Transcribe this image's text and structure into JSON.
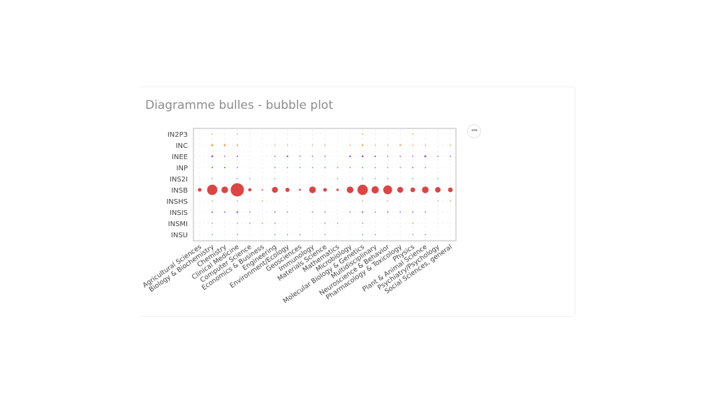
{
  "card": {
    "title": "Diagramme bulles - bubble plot",
    "menu_icon": "more-horizontal-icon"
  },
  "chart_data": {
    "type": "scatter",
    "title": "Diagramme bulles - bubble plot",
    "xlabel": "",
    "ylabel": "",
    "grid": true,
    "legend": "none",
    "x_categories": [
      "Agricultural Sciences",
      "Biology & Biochemistry",
      "Chemistry",
      "Clinical Medicine",
      "Computer Science",
      "Economics & Business",
      "Engineering",
      "Environment/Ecology",
      "Geosciences",
      "Immunology",
      "Materials Science",
      "Mathematics",
      "Microbiology",
      "Molecular Biology & Genetics",
      "Multidisciplinary",
      "Neuroscience & Behavior",
      "Pharmacology & Toxicology",
      "Physics",
      "Plant & Animal Science",
      "Psychiatry/Psychology",
      "Social Sciences, general"
    ],
    "y_categories": [
      "IN2P3",
      "INC",
      "INEE",
      "INP",
      "INS2I",
      "INSB",
      "INSHS",
      "INSIS",
      "INSMI",
      "INSU"
    ],
    "series": [
      {
        "institute": "IN2P3",
        "color": "#f0a050",
        "values": [
          0,
          0.04,
          0,
          0.03,
          0,
          0,
          0,
          0,
          0,
          0,
          0,
          0,
          0,
          0.03,
          0,
          0,
          0,
          0.02,
          0,
          0,
          0
        ]
      },
      {
        "institute": "INC",
        "color": "#f5912e",
        "values": [
          0,
          0.5,
          0.5,
          0.3,
          0,
          0,
          0.15,
          0.1,
          0,
          0.1,
          0.2,
          0,
          0.1,
          0.35,
          0.1,
          0.05,
          0.35,
          0.15,
          0.1,
          0,
          0.05
        ]
      },
      {
        "institute": "INEE",
        "color": "#7b3fe8",
        "values": [
          0,
          0.45,
          0.1,
          0.25,
          0,
          0,
          0.1,
          0.35,
          0.15,
          0.1,
          0.05,
          0,
          0.35,
          0.4,
          0.3,
          0.1,
          0.1,
          0.1,
          0.5,
          0.05,
          0.1
        ]
      },
      {
        "institute": "INP",
        "color": "#3fa84a",
        "values": [
          0,
          0.3,
          0.3,
          0.2,
          0,
          0,
          0.2,
          0.05,
          0.05,
          0.05,
          0.2,
          0.05,
          0.05,
          0.2,
          0.15,
          0.05,
          0.1,
          0.25,
          0.05,
          0,
          0
        ]
      },
      {
        "institute": "INS2I",
        "color": "#40b0a8",
        "values": [
          0,
          0.05,
          0,
          0.05,
          0.15,
          0,
          0.05,
          0,
          0,
          0,
          0,
          0.05,
          0,
          0.1,
          0.05,
          0.15,
          0,
          0.05,
          0,
          0.05,
          0
        ]
      },
      {
        "institute": "INSB",
        "color": "#dd4444",
        "values": [
          1.5,
          12,
          5,
          20,
          1.2,
          0.3,
          4,
          2,
          0.5,
          5,
          1.5,
          0.8,
          5,
          12,
          6,
          9,
          4,
          2.5,
          5,
          3.5,
          2.5
        ]
      },
      {
        "institute": "INSHS",
        "color": "#b8a070",
        "values": [
          0,
          0.02,
          0,
          0.02,
          0,
          0.05,
          0,
          0,
          0,
          0,
          0,
          0,
          0,
          0.02,
          0,
          0.02,
          0,
          0,
          0,
          0.05,
          0.05
        ]
      },
      {
        "institute": "INSIS",
        "color": "#6a5ae0",
        "values": [
          0,
          0.3,
          0.25,
          0.4,
          0.05,
          0,
          0.25,
          0.05,
          0,
          0.05,
          0.15,
          0,
          0.05,
          0.3,
          0.05,
          0.25,
          0.05,
          0.2,
          0.05,
          0,
          0
        ]
      },
      {
        "institute": "INSMI",
        "color": "#cf7a5a",
        "values": [
          0,
          0.02,
          0,
          0.02,
          0.05,
          0.02,
          0.02,
          0,
          0,
          0,
          0.02,
          0.05,
          0,
          0.02,
          0,
          0,
          0,
          0.02,
          0,
          0,
          0
        ]
      },
      {
        "institute": "INSU",
        "color": "#5a8ad8",
        "values": [
          0,
          0.03,
          0,
          0.02,
          0,
          0,
          0.02,
          0.05,
          0.05,
          0,
          0.02,
          0,
          0,
          0.02,
          0.02,
          0,
          0,
          0.03,
          0.05,
          0,
          0
        ]
      }
    ]
  }
}
